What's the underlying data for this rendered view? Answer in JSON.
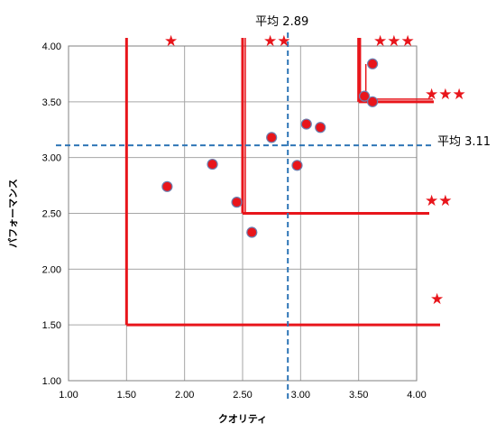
{
  "chart_data": {
    "type": "scatter",
    "title": "",
    "xlabel": "クオリティ",
    "ylabel": "パフォーマンス",
    "xlim": [
      1.0,
      4.0
    ],
    "ylim": [
      1.0,
      4.0
    ],
    "xticks": [
      "1.00",
      "1.50",
      "2.00",
      "2.50",
      "3.00",
      "3.50",
      "4.00"
    ],
    "yticks": [
      "1.00",
      "1.50",
      "2.00",
      "2.50",
      "3.00",
      "3.50",
      "4.00"
    ],
    "grid": true,
    "marker_color": "#e8151b",
    "mean_line_color": "#2e75b6",
    "threshold_color": "#e8151b",
    "points": [
      {
        "x": 1.85,
        "y": 2.74
      },
      {
        "x": 2.24,
        "y": 2.94
      },
      {
        "x": 2.45,
        "y": 2.6
      },
      {
        "x": 2.58,
        "y": 2.33
      },
      {
        "x": 2.75,
        "y": 3.18
      },
      {
        "x": 2.97,
        "y": 2.93
      },
      {
        "x": 3.05,
        "y": 3.3
      },
      {
        "x": 3.17,
        "y": 3.27
      },
      {
        "x": 3.55,
        "y": 3.55
      },
      {
        "x": 3.62,
        "y": 3.5
      },
      {
        "x": 3.62,
        "y": 3.84
      }
    ],
    "mean_lines": {
      "x": {
        "value": 2.89,
        "label": "平均 2.89"
      },
      "y": {
        "value": 3.11,
        "label": "平均 3.11"
      }
    },
    "rating_zones": [
      {
        "x_min": 1.5,
        "y_min": 1.5,
        "stars": "★"
      },
      {
        "x_min": 2.5,
        "y_min": 2.5,
        "stars": "★★"
      },
      {
        "x_min": 3.5,
        "y_min": 3.5,
        "stars": "★★★"
      }
    ],
    "annotations": {
      "top_star_1": "★",
      "top_star_2": "★★",
      "top_star_3": "★★★",
      "right_star_1": "★",
      "right_star_2": "★★",
      "right_star_3": "★★★"
    }
  }
}
